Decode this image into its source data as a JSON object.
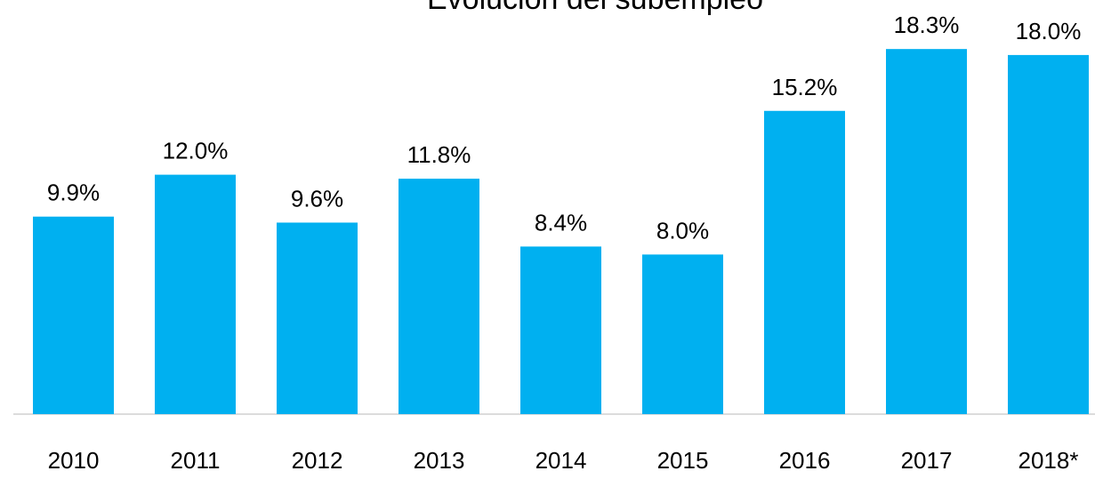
{
  "chart_data": {
    "type": "bar",
    "title": "Evolución del subempleo",
    "categories": [
      "2010",
      "2011",
      "2012",
      "2013",
      "2014",
      "2015",
      "2016",
      "2017",
      "2018*"
    ],
    "values": [
      9.9,
      12.0,
      9.6,
      11.8,
      8.4,
      8.0,
      15.2,
      18.3,
      18.0
    ],
    "value_labels": [
      "9.9%",
      "12.0%",
      "9.6%",
      "11.8%",
      "8.4%",
      "8.0%",
      "15.2%",
      "18.3%",
      "18.0%"
    ],
    "color": "#00b0f0"
  }
}
